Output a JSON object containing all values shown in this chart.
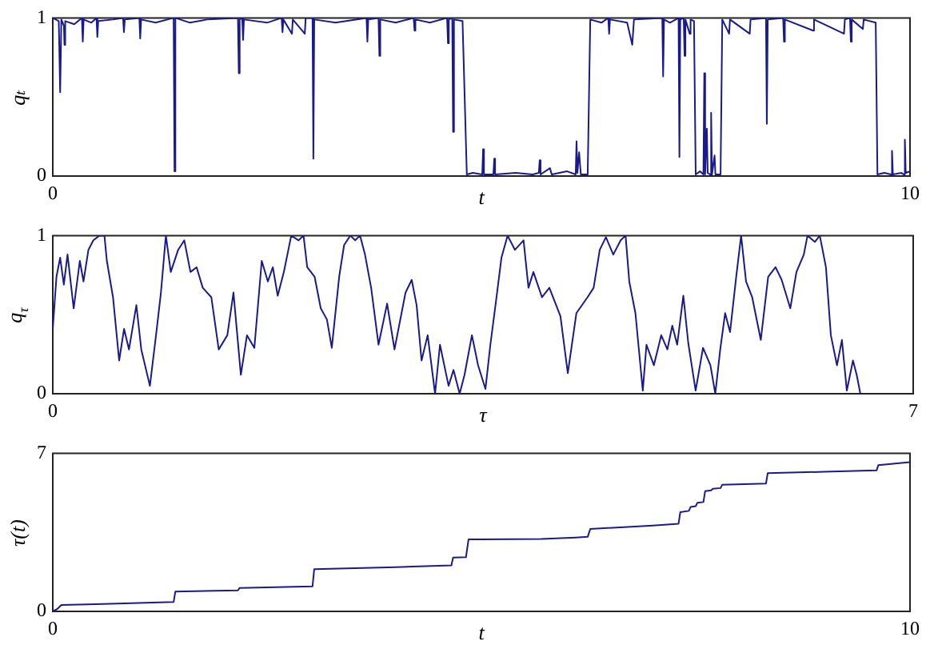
{
  "chart_data": [
    {
      "type": "line",
      "xlabel": "t",
      "ylabel": "qₜ",
      "color": "#1a1a8e",
      "xlim": [
        0,
        10
      ],
      "ylim": [
        0,
        1
      ],
      "xticks": [
        0,
        10
      ],
      "yticks": [
        0,
        1
      ],
      "x": [
        0,
        0.07,
        0.086,
        0.1,
        0.13,
        0.136,
        0.145,
        0.25,
        0.34,
        0.35,
        0.36,
        0.45,
        0.51,
        0.52,
        0.53,
        0.7,
        0.82,
        0.83,
        0.84,
        1.01,
        1.02,
        1.03,
        1.2,
        1.41,
        1.42,
        1.43,
        1.6,
        1.8,
        2.16,
        2.17,
        2.18,
        2.21,
        2.22,
        2.23,
        2.5,
        2.67,
        2.68,
        2.69,
        2.79,
        2.8,
        2.94,
        2.95,
        3.03,
        3.04,
        3.05,
        3.3,
        3.66,
        3.67,
        3.68,
        3.8,
        3.81,
        3.82,
        4.0,
        4.21,
        4.22,
        4.23,
        4.4,
        4.6,
        4.61,
        4.62,
        4.66,
        4.67,
        4.68,
        4.78,
        4.83,
        4.9,
        5.01,
        5.02,
        5.03,
        5.14,
        5.15,
        5.16,
        5.4,
        5.6,
        5.67,
        5.68,
        5.69,
        5.8,
        5.82,
        6.0,
        6.1,
        6.11,
        6.12,
        6.14,
        6.16,
        6.24,
        6.27,
        6.4,
        6.48,
        6.49,
        6.5,
        6.7,
        6.76,
        6.78,
        7.11,
        7.12,
        7.13,
        7.2,
        7.3,
        7.31,
        7.32,
        7.36,
        7.37,
        7.38,
        7.43,
        7.44,
        7.48,
        7.5,
        7.55,
        7.59,
        7.6,
        7.61,
        7.63,
        7.64,
        7.67,
        7.68,
        7.69,
        7.72,
        7.73,
        7.79,
        7.81,
        7.89,
        7.9,
        8.13,
        8.14,
        8.32,
        8.33,
        8.34,
        8.52,
        8.53,
        8.54,
        8.87,
        8.88,
        9.23,
        9.24,
        9.3,
        9.31,
        9.32,
        9.45,
        9.46,
        9.6,
        9.62,
        9.7,
        9.78,
        9.79,
        9.8,
        9.9,
        9.93,
        9.94,
        9.95,
        10
      ],
      "values": [
        1,
        0.98,
        0.53,
        0.99,
        0.95,
        0.83,
        0.98,
        0.96,
        1,
        0.85,
        0.99,
        0.97,
        1,
        0.88,
        0.98,
        0.99,
        1,
        0.91,
        0.99,
        1,
        0.87,
        0.99,
        0.97,
        1,
        0.03,
        1,
        0.97,
        0.99,
        1,
        0.65,
        0.99,
        1,
        0.86,
        0.99,
        0.97,
        1,
        0.91,
        0.99,
        0.9,
        0.99,
        0.9,
        1,
        1,
        0.11,
        0.99,
        0.97,
        1,
        0.85,
        0.99,
        1,
        0.76,
        0.99,
        0.97,
        1,
        0.92,
        0.99,
        0.97,
        1,
        0.84,
        0.99,
        1,
        0.28,
        0.99,
        0.98,
        0.01,
        0.02,
        0.01,
        0.17,
        0.01,
        0.01,
        0.11,
        0.01,
        0.02,
        0.01,
        0.02,
        0.1,
        0.01,
        0.05,
        0.01,
        0.03,
        0.01,
        0.22,
        0.02,
        0.15,
        0.01,
        0.01,
        0.99,
        0.97,
        1,
        0.9,
        0.99,
        0.97,
        0.83,
        0.99,
        1,
        0.63,
        0.99,
        0.97,
        1,
        0.12,
        0.99,
        1,
        0.76,
        0.99,
        0.9,
        0.99,
        0.98,
        0.01,
        0.03,
        0.01,
        0.65,
        0.01,
        0.3,
        0.02,
        0.01,
        0.4,
        0.01,
        0.13,
        0.01,
        0.01,
        0.99,
        0.9,
        0.99,
        0.9,
        0.99,
        1,
        0.33,
        0.99,
        1,
        0.85,
        0.99,
        0.92,
        0.99,
        0.9,
        0.99,
        1,
        0.85,
        0.99,
        0.93,
        0.99,
        0.97,
        0.01,
        0.02,
        0.01,
        0.16,
        0.01,
        0.02,
        0.01,
        0.23,
        0.02,
        0.03
      ]
    },
    {
      "type": "line",
      "xlabel": "τ",
      "ylabel": "q$_{τ}$",
      "color": "#1a1a8e",
      "xlim": [
        0,
        7
      ],
      "ylim": [
        0,
        1
      ],
      "xticks": [
        0,
        7
      ],
      "yticks": [
        0,
        1
      ],
      "x": [
        0,
        0.03,
        0.06,
        0.09,
        0.12,
        0.17,
        0.22,
        0.25,
        0.29,
        0.33,
        0.38,
        0.42,
        0.44,
        0.49,
        0.54,
        0.58,
        0.62,
        0.68,
        0.72,
        0.79,
        0.84,
        0.88,
        0.92,
        0.96,
        1.02,
        1.07,
        1.12,
        1.17,
        1.22,
        1.29,
        1.35,
        1.42,
        1.47,
        1.53,
        1.58,
        1.64,
        1.7,
        1.75,
        1.79,
        1.83,
        1.88,
        1.94,
        2.0,
        2.04,
        2.07,
        2.13,
        2.18,
        2.23,
        2.27,
        2.33,
        2.37,
        2.42,
        2.46,
        2.5,
        2.54,
        2.59,
        2.65,
        2.72,
        2.78,
        2.87,
        2.92,
        2.96,
        3.0,
        3.05,
        3.11,
        3.15,
        3.22,
        3.26,
        3.31,
        3.35,
        3.41,
        3.46,
        3.52,
        3.56,
        3.61,
        3.65,
        3.7,
        3.76,
        3.83,
        3.87,
        3.91,
        3.98,
        4.04,
        4.13,
        4.19,
        4.26,
        4.35,
        4.4,
        4.45,
        4.5,
        4.56,
        4.62,
        4.66,
        4.69,
        4.74,
        4.8,
        4.83,
        4.89,
        4.95,
        5.0,
        5.04,
        5.08,
        5.13,
        5.17,
        5.23,
        5.29,
        5.35,
        5.39,
        5.43,
        5.47,
        5.51,
        5.56,
        5.6,
        5.64,
        5.69,
        5.76,
        5.82,
        5.88,
        5.93,
        6.0,
        6.05,
        6.11,
        6.14,
        6.2,
        6.24,
        6.29,
        6.33,
        6.38,
        6.42,
        6.46,
        6.51,
        6.54,
        6.57
      ],
      "values": [
        0.41,
        0.74,
        0.86,
        0.69,
        0.88,
        0.54,
        0.84,
        0.71,
        0.91,
        0.97,
        1,
        1,
        0.84,
        0.61,
        0.21,
        0.41,
        0.28,
        0.56,
        0.28,
        0.05,
        0.37,
        0.64,
        1,
        0.77,
        0.91,
        0.97,
        0.77,
        0.8,
        0.67,
        0.61,
        0.28,
        0.37,
        0.64,
        0.12,
        0.37,
        0.29,
        0.84,
        0.71,
        0.8,
        0.62,
        0.77,
        1,
        0.97,
        1,
        0.8,
        0.74,
        0.54,
        0.47,
        0.29,
        0.74,
        0.94,
        1,
        0.97,
        1,
        0.88,
        0.67,
        0.31,
        0.57,
        0.28,
        0.64,
        0.72,
        0.56,
        0.21,
        0.37,
        0,
        0.31,
        0.05,
        0.15,
        0,
        0.12,
        0.37,
        0.18,
        0.03,
        0.31,
        0.61,
        0.86,
        1,
        0.91,
        0.97,
        0.67,
        0.77,
        0.61,
        0.67,
        0.49,
        0.13,
        0.51,
        0.61,
        0.67,
        0.91,
        0.99,
        0.88,
        0.97,
        1,
        0.71,
        0.51,
        0.02,
        0.31,
        0.18,
        0.37,
        0.28,
        0.43,
        0.31,
        0.62,
        0.32,
        0.02,
        0.29,
        0.18,
        0,
        0.28,
        0.51,
        0.39,
        0.74,
        1,
        0.71,
        0.61,
        0.34,
        0.74,
        0.8,
        0.72,
        0.54,
        0.77,
        0.88,
        1,
        0.96,
        1,
        0.8,
        0.37,
        0.18,
        0.34,
        0.02,
        0.21,
        0.12,
        0
      ]
    },
    {
      "type": "line",
      "xlabel": "t",
      "ylabel": "τ(t)",
      "color": "#1a1a8e",
      "xlim": [
        0,
        10
      ],
      "ylim": [
        0,
        7
      ],
      "xticks": [
        0,
        10
      ],
      "yticks": [
        0,
        7
      ],
      "x": [
        0,
        0.05,
        0.1,
        0.5,
        1.0,
        1.41,
        1.43,
        2.16,
        2.18,
        3.03,
        3.05,
        4.0,
        4.65,
        4.67,
        4.82,
        4.85,
        5.0,
        5.7,
        6.1,
        6.24,
        6.27,
        7.0,
        7.3,
        7.32,
        7.42,
        7.44,
        7.5,
        7.52,
        7.59,
        7.61,
        7.68,
        7.7,
        7.79,
        7.81,
        8.32,
        8.34,
        9.0,
        9.61,
        9.63,
        10
      ],
      "values": [
        0,
        0.1,
        0.28,
        0.32,
        0.37,
        0.42,
        0.88,
        0.93,
        1.04,
        1.11,
        1.87,
        1.96,
        2.04,
        2.38,
        2.4,
        3.19,
        3.19,
        3.21,
        3.27,
        3.3,
        3.65,
        3.8,
        3.88,
        4.39,
        4.45,
        4.62,
        4.66,
        4.81,
        4.84,
        5.32,
        5.36,
        5.43,
        5.46,
        5.61,
        5.66,
        6.12,
        6.18,
        6.24,
        6.47,
        6.61
      ]
    }
  ]
}
